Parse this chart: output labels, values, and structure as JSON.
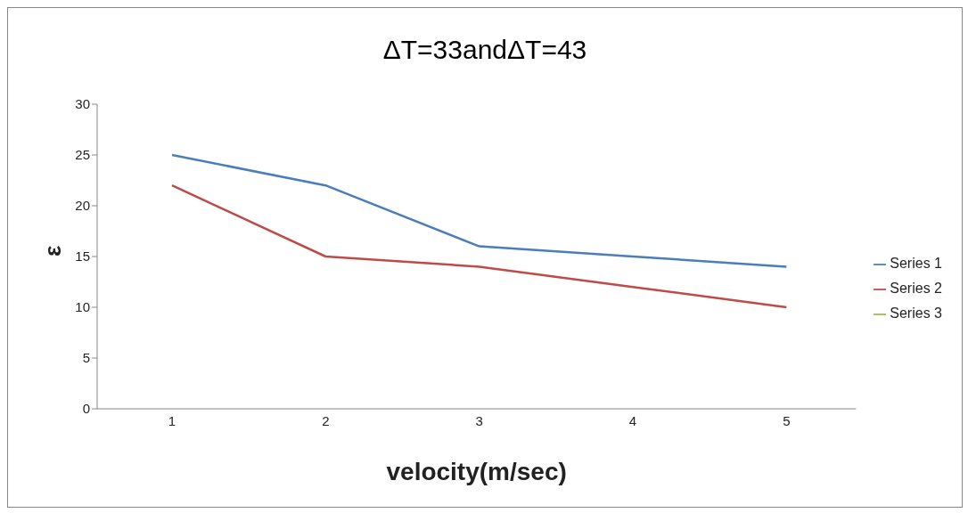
{
  "chart_data": {
    "type": "line",
    "title": "ΔT=33andΔT=43",
    "xlabel": "velocity(m/sec)",
    "ylabel": "ε",
    "categories": [
      "1",
      "2",
      "3",
      "4",
      "5"
    ],
    "series": [
      {
        "name": "Series 1",
        "color": "#4a7ebb",
        "values": [
          25,
          22,
          16,
          15,
          14
        ]
      },
      {
        "name": "Series 2",
        "color": "#be4b48",
        "values": [
          22,
          15,
          14,
          12,
          10
        ]
      },
      {
        "name": "Series 3",
        "color": "#98b954",
        "values": [
          null,
          null,
          null,
          null,
          null
        ]
      }
    ],
    "ylim": [
      0,
      30
    ],
    "yticks": [
      0,
      5,
      10,
      15,
      20,
      25,
      30
    ],
    "grid": false,
    "legend": "right",
    "marker": "none",
    "line_style": "solid"
  }
}
